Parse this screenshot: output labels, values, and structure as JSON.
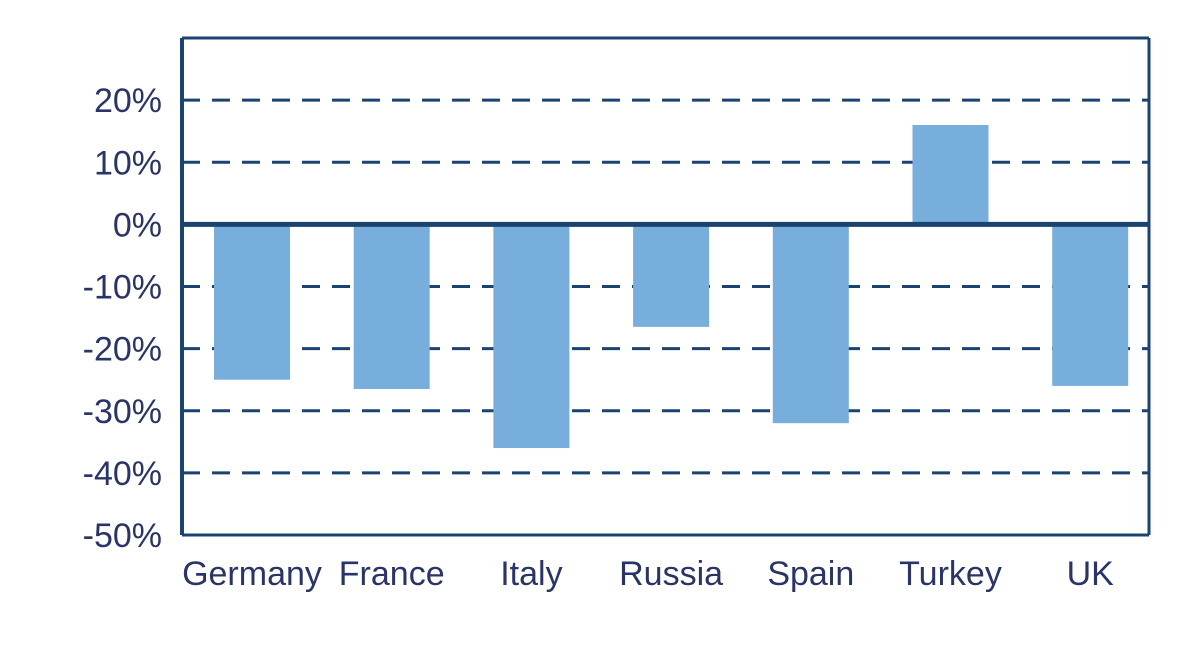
{
  "chart_data": {
    "type": "bar",
    "title": "",
    "xlabel": "",
    "ylabel": "",
    "categories": [
      "Germany",
      "France",
      "Italy",
      "Russia",
      "Spain",
      "Turkey",
      "UK"
    ],
    "values": [
      -25,
      -26.5,
      -36,
      -16.5,
      -32,
      16,
      -26
    ],
    "ylim": [
      -50,
      30
    ],
    "yticks": [
      20,
      10,
      0,
      -10,
      -20,
      -30,
      -40,
      -50
    ],
    "ytick_labels": [
      "20%",
      "10%",
      "0%",
      "-10%",
      "-20%",
      "-30%",
      "-40%",
      "-50%"
    ],
    "grid": "horizontal dashed",
    "legend": "none",
    "colors": {
      "bar": "#78aedb",
      "axis": "#1b4370",
      "grid": "#1b4370",
      "text": "#2a3466"
    }
  }
}
